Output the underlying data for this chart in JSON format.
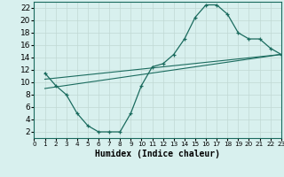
{
  "line1_x": [
    1,
    2,
    3,
    4,
    5,
    6,
    7,
    8,
    9,
    10,
    11,
    12,
    13,
    14,
    15,
    16,
    17,
    18,
    19,
    20,
    21,
    22,
    23
  ],
  "line1_y": [
    11.5,
    9.5,
    8.0,
    5.0,
    3.0,
    2.0,
    2.0,
    2.0,
    5.0,
    9.5,
    12.5,
    13.0,
    14.5,
    17.0,
    20.5,
    22.5,
    22.5,
    21.0,
    18.0,
    17.0,
    17.0,
    15.5,
    14.5
  ],
  "line2_x": [
    1,
    23
  ],
  "line2_y": [
    9.0,
    14.5
  ],
  "line3_x": [
    1,
    23
  ],
  "line3_y": [
    10.5,
    14.5
  ],
  "line_color": "#1a6b5e",
  "bg_color": "#d8f0ee",
  "grid_color": "#c0d8d4",
  "xlabel": "Humidex (Indice chaleur)",
  "ylim": [
    1,
    23
  ],
  "xlim": [
    0,
    23
  ],
  "yticks": [
    2,
    4,
    6,
    8,
    10,
    12,
    14,
    16,
    18,
    20,
    22
  ],
  "xticks": [
    0,
    1,
    2,
    3,
    4,
    5,
    6,
    7,
    8,
    9,
    10,
    11,
    12,
    13,
    14,
    15,
    16,
    17,
    18,
    19,
    20,
    21,
    22,
    23
  ],
  "xlabel_fontsize": 7,
  "ytick_fontsize": 6.5,
  "xtick_fontsize": 5.2
}
